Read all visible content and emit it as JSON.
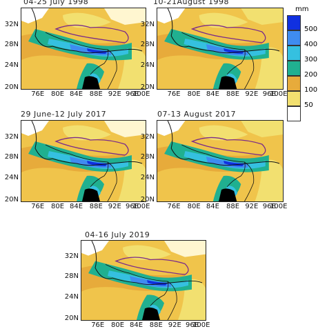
{
  "panels": [
    {
      "id": "p1",
      "title": "04-25 July 1998"
    },
    {
      "id": "p2",
      "title": "10-21August 1998"
    },
    {
      "id": "p3",
      "title": "29 June-12 July 2017"
    },
    {
      "id": "p4",
      "title": "07-13 August 2017"
    },
    {
      "id": "p5",
      "title": "04-16 July 2019"
    }
  ],
  "lat_labels": [
    "32N",
    "28N",
    "24N",
    "20N"
  ],
  "lon_labels": [
    "76E",
    "80E",
    "84E",
    "88E",
    "92E",
    "96E",
    "100E"
  ],
  "legend": {
    "unit": "mm",
    "classes": [
      {
        "label": "500",
        "color": "#1030e0"
      },
      {
        "label": "400",
        "color": "#3f8cf0"
      },
      {
        "label": "300",
        "color": "#35c0e0"
      },
      {
        "label": "200",
        "color": "#20b090"
      },
      {
        "label": "100",
        "color": "#e7ab3b"
      },
      {
        "label": "50",
        "color": "#f2e070"
      },
      {
        "label": "",
        "color": "#ffffff"
      }
    ]
  },
  "colors": {
    "land_low": "#f0c44b",
    "orange": "#e7ab3b",
    "pale": "#f2e070",
    "teal": "#20b090",
    "cyan": "#35c0e0",
    "blue": "#3f8cf0",
    "darkblue": "#1030e0",
    "boundary": "#7a2a8a",
    "border": "#111111"
  }
}
